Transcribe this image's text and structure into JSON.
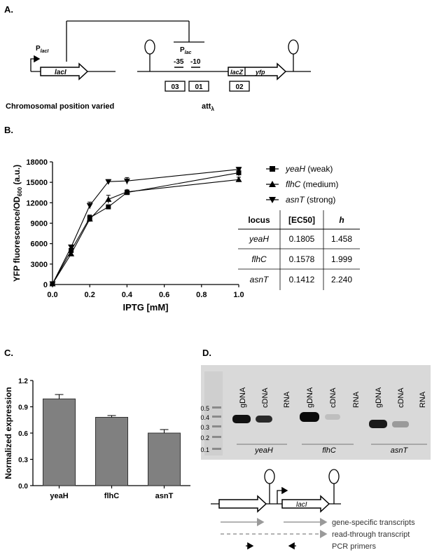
{
  "panels": {
    "a": "A.",
    "b": "B.",
    "c": "C.",
    "d": "D."
  },
  "panel_a": {
    "promoter_laci": "P",
    "promoter_laci_sub": "lacI",
    "gene_laci": "lacI",
    "promoter_lac": "P",
    "promoter_lac_sub": "lac",
    "minus35": "-35",
    "minus10": "-10",
    "gene_lacz": "lacZ",
    "gene_yfp": "yfp",
    "box_03": "03",
    "box_01": "01",
    "box_02": "02",
    "chromosomal": "Chromosomal position varied",
    "att": "att",
    "att_sub": "λ"
  },
  "table_b": {
    "headers": [
      "locus",
      "[EC50]",
      "h"
    ],
    "rows": [
      [
        "yeaH",
        "0.1805",
        "1.458"
      ],
      [
        "flhC",
        "0.1578",
        "1.999"
      ],
      [
        "asnT",
        "0.1412",
        "2.240"
      ]
    ]
  },
  "panel_d": {
    "ladder": [
      "0.5",
      "0.4",
      "0.3",
      "0.2",
      "0.1"
    ],
    "lanes": [
      "gDNA",
      "cDNA",
      "RNA",
      "gDNA",
      "cDNA",
      "RNA",
      "gDNA",
      "cDNA",
      "RNA"
    ],
    "groups": [
      "yeaH",
      "flhC",
      "asnT"
    ],
    "diagram_gene": "lacI",
    "legend": [
      "gene-specific transcripts",
      "read-through transcript",
      "PCR primers"
    ]
  },
  "chart_data": [
    {
      "type": "line",
      "xlabel": "IPTG [mM]",
      "ylabel": "YFP fluorescence/OD",
      "ylabel_sub": "600",
      "ylabel_suffix": " (a.u.)",
      "xlim": [
        0.0,
        1.0
      ],
      "ylim": [
        0,
        18000
      ],
      "xticks": [
        "0.0",
        "0.2",
        "0.4",
        "0.6",
        "0.8",
        "1.0"
      ],
      "yticks": [
        "0",
        "3000",
        "6000",
        "9000",
        "12000",
        "15000",
        "18000"
      ],
      "x": [
        0.0,
        0.1,
        0.2,
        0.3,
        0.4,
        1.0
      ],
      "series": [
        {
          "name": "yeaH",
          "note": "(weak)",
          "marker": "square",
          "values": [
            100,
            5000,
            9800,
            11400,
            13500,
            16400
          ],
          "errors": [
            150,
            300,
            400,
            250,
            300,
            500
          ]
        },
        {
          "name": "flhC",
          "note": "(medium)",
          "marker": "triangle-up",
          "values": [
            100,
            4500,
            9600,
            12500,
            13600,
            15400
          ],
          "errors": [
            150,
            300,
            400,
            600,
            300,
            350
          ]
        },
        {
          "name": "asnT",
          "note": "(strong)",
          "marker": "triangle-down",
          "values": [
            100,
            5500,
            11600,
            15100,
            15200,
            16900
          ],
          "errors": [
            150,
            300,
            500,
            300,
            500,
            300
          ]
        }
      ],
      "legend_position": "top-right"
    },
    {
      "type": "bar",
      "ylabel": "Normalized expression",
      "categories": [
        "yeaH",
        "flhC",
        "asnT"
      ],
      "values": [
        0.99,
        0.78,
        0.6
      ],
      "errors": [
        0.05,
        0.02,
        0.04
      ],
      "ylim": [
        0.0,
        1.2
      ],
      "yticks": [
        "0.0",
        "0.3",
        "0.6",
        "0.9",
        "1.2"
      ],
      "bar_color": "#808080"
    }
  ]
}
